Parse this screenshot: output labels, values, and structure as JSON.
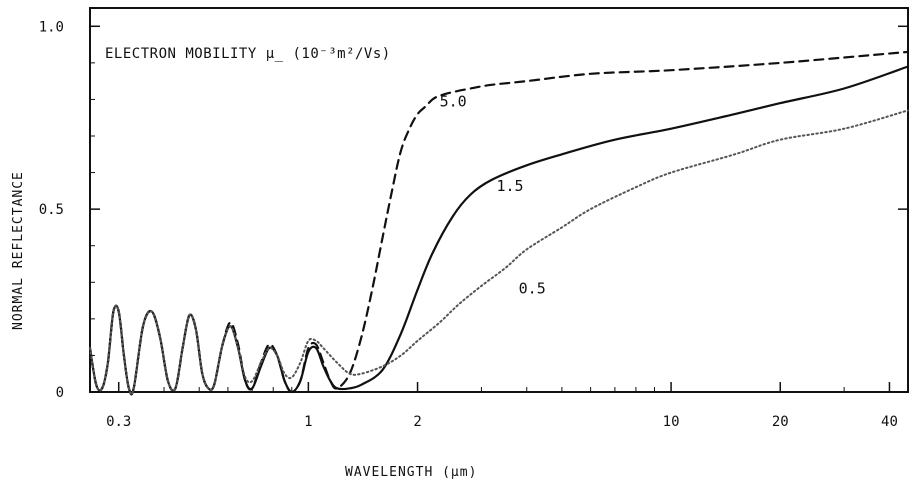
{
  "chart_data": {
    "type": "line",
    "title": "ELECTRON MOBILITY μ_  (10⁻³m²/Vs)",
    "xlabel": "WAVELENGTH   (μm)",
    "ylabel": "NORMAL REFLECTANCE",
    "x_scale": "log",
    "xlim": [
      0.25,
      45
    ],
    "ylim": [
      0,
      1.05
    ],
    "x_ticks": [
      {
        "value": 0.3,
        "label": "0.3"
      },
      {
        "value": 1,
        "label": "1"
      },
      {
        "value": 2,
        "label": "2"
      },
      {
        "value": 10,
        "label": "10"
      },
      {
        "value": 20,
        "label": "20"
      },
      {
        "value": 40,
        "label": "40"
      }
    ],
    "y_ticks": [
      {
        "value": 0,
        "label": "0"
      },
      {
        "value": 0.5,
        "label": "0.5"
      },
      {
        "value": 1.0,
        "label": "1.0"
      }
    ],
    "grid": false,
    "series": [
      {
        "name": "5.0",
        "style": "dashed",
        "color": "#111111",
        "label_at": [
          2.3,
          0.78
        ],
        "x": [
          0.25,
          0.26,
          0.27,
          0.28,
          0.29,
          0.3,
          0.31,
          0.32,
          0.33,
          0.35,
          0.37,
          0.39,
          0.41,
          0.43,
          0.45,
          0.47,
          0.49,
          0.51,
          0.53,
          0.55,
          0.58,
          0.61,
          0.64,
          0.67,
          0.7,
          0.74,
          0.78,
          0.82,
          0.86,
          0.9,
          0.95,
          1.0,
          1.05,
          1.1,
          1.15,
          1.2,
          1.3,
          1.4,
          1.5,
          1.6,
          1.7,
          1.8,
          1.9,
          2.0,
          2.1,
          2.2,
          2.3,
          2.5,
          2.8,
          3.2,
          4,
          6,
          10,
          20,
          45
        ],
        "y": [
          0.12,
          0.02,
          0.01,
          0.08,
          0.22,
          0.22,
          0.1,
          0.01,
          0.01,
          0.18,
          0.22,
          0.15,
          0.03,
          0.01,
          0.12,
          0.21,
          0.17,
          0.05,
          0.01,
          0.02,
          0.13,
          0.19,
          0.13,
          0.03,
          0.01,
          0.08,
          0.13,
          0.1,
          0.03,
          0.0,
          0.03,
          0.12,
          0.13,
          0.08,
          0.03,
          0.01,
          0.05,
          0.15,
          0.28,
          0.42,
          0.55,
          0.66,
          0.72,
          0.76,
          0.78,
          0.8,
          0.81,
          0.82,
          0.83,
          0.84,
          0.85,
          0.87,
          0.88,
          0.9,
          0.93
        ]
      },
      {
        "name": "1.5",
        "style": "solid",
        "color": "#111111",
        "label_at": [
          3.3,
          0.55
        ],
        "x": [
          0.25,
          0.26,
          0.27,
          0.28,
          0.29,
          0.3,
          0.31,
          0.32,
          0.33,
          0.35,
          0.37,
          0.39,
          0.41,
          0.43,
          0.45,
          0.47,
          0.49,
          0.51,
          0.53,
          0.55,
          0.58,
          0.61,
          0.64,
          0.67,
          0.7,
          0.74,
          0.78,
          0.82,
          0.86,
          0.9,
          0.95,
          1.0,
          1.05,
          1.1,
          1.15,
          1.2,
          1.3,
          1.4,
          1.6,
          1.8,
          2.0,
          2.2,
          2.5,
          2.8,
          3.2,
          4,
          5,
          7,
          10,
          15,
          20,
          30,
          45
        ],
        "y": [
          0.12,
          0.02,
          0.01,
          0.08,
          0.22,
          0.22,
          0.1,
          0.01,
          0.01,
          0.18,
          0.22,
          0.15,
          0.03,
          0.01,
          0.12,
          0.21,
          0.17,
          0.05,
          0.01,
          0.02,
          0.13,
          0.18,
          0.12,
          0.03,
          0.01,
          0.07,
          0.12,
          0.1,
          0.03,
          0.0,
          0.03,
          0.11,
          0.12,
          0.07,
          0.03,
          0.01,
          0.01,
          0.02,
          0.06,
          0.16,
          0.28,
          0.38,
          0.48,
          0.54,
          0.58,
          0.62,
          0.65,
          0.69,
          0.72,
          0.76,
          0.79,
          0.83,
          0.89
        ]
      },
      {
        "name": "0.5",
        "style": "dotted",
        "color": "#555555",
        "label_at": [
          3.8,
          0.27
        ],
        "x": [
          0.25,
          0.26,
          0.27,
          0.28,
          0.29,
          0.3,
          0.31,
          0.32,
          0.33,
          0.35,
          0.37,
          0.39,
          0.41,
          0.43,
          0.45,
          0.47,
          0.49,
          0.51,
          0.53,
          0.55,
          0.58,
          0.61,
          0.64,
          0.67,
          0.7,
          0.74,
          0.78,
          0.82,
          0.86,
          0.9,
          0.95,
          1.0,
          1.05,
          1.1,
          1.2,
          1.3,
          1.4,
          1.6,
          1.8,
          2.0,
          2.3,
          2.6,
          3.0,
          3.5,
          4,
          5,
          6,
          8,
          10,
          15,
          20,
          30,
          45
        ],
        "y": [
          0.12,
          0.02,
          0.01,
          0.08,
          0.22,
          0.22,
          0.1,
          0.01,
          0.01,
          0.18,
          0.22,
          0.15,
          0.03,
          0.01,
          0.12,
          0.21,
          0.17,
          0.05,
          0.01,
          0.02,
          0.13,
          0.18,
          0.12,
          0.04,
          0.03,
          0.08,
          0.12,
          0.1,
          0.05,
          0.04,
          0.08,
          0.14,
          0.14,
          0.12,
          0.08,
          0.05,
          0.05,
          0.07,
          0.1,
          0.14,
          0.19,
          0.24,
          0.29,
          0.34,
          0.39,
          0.45,
          0.5,
          0.56,
          0.6,
          0.65,
          0.69,
          0.72,
          0.77
        ]
      }
    ]
  }
}
